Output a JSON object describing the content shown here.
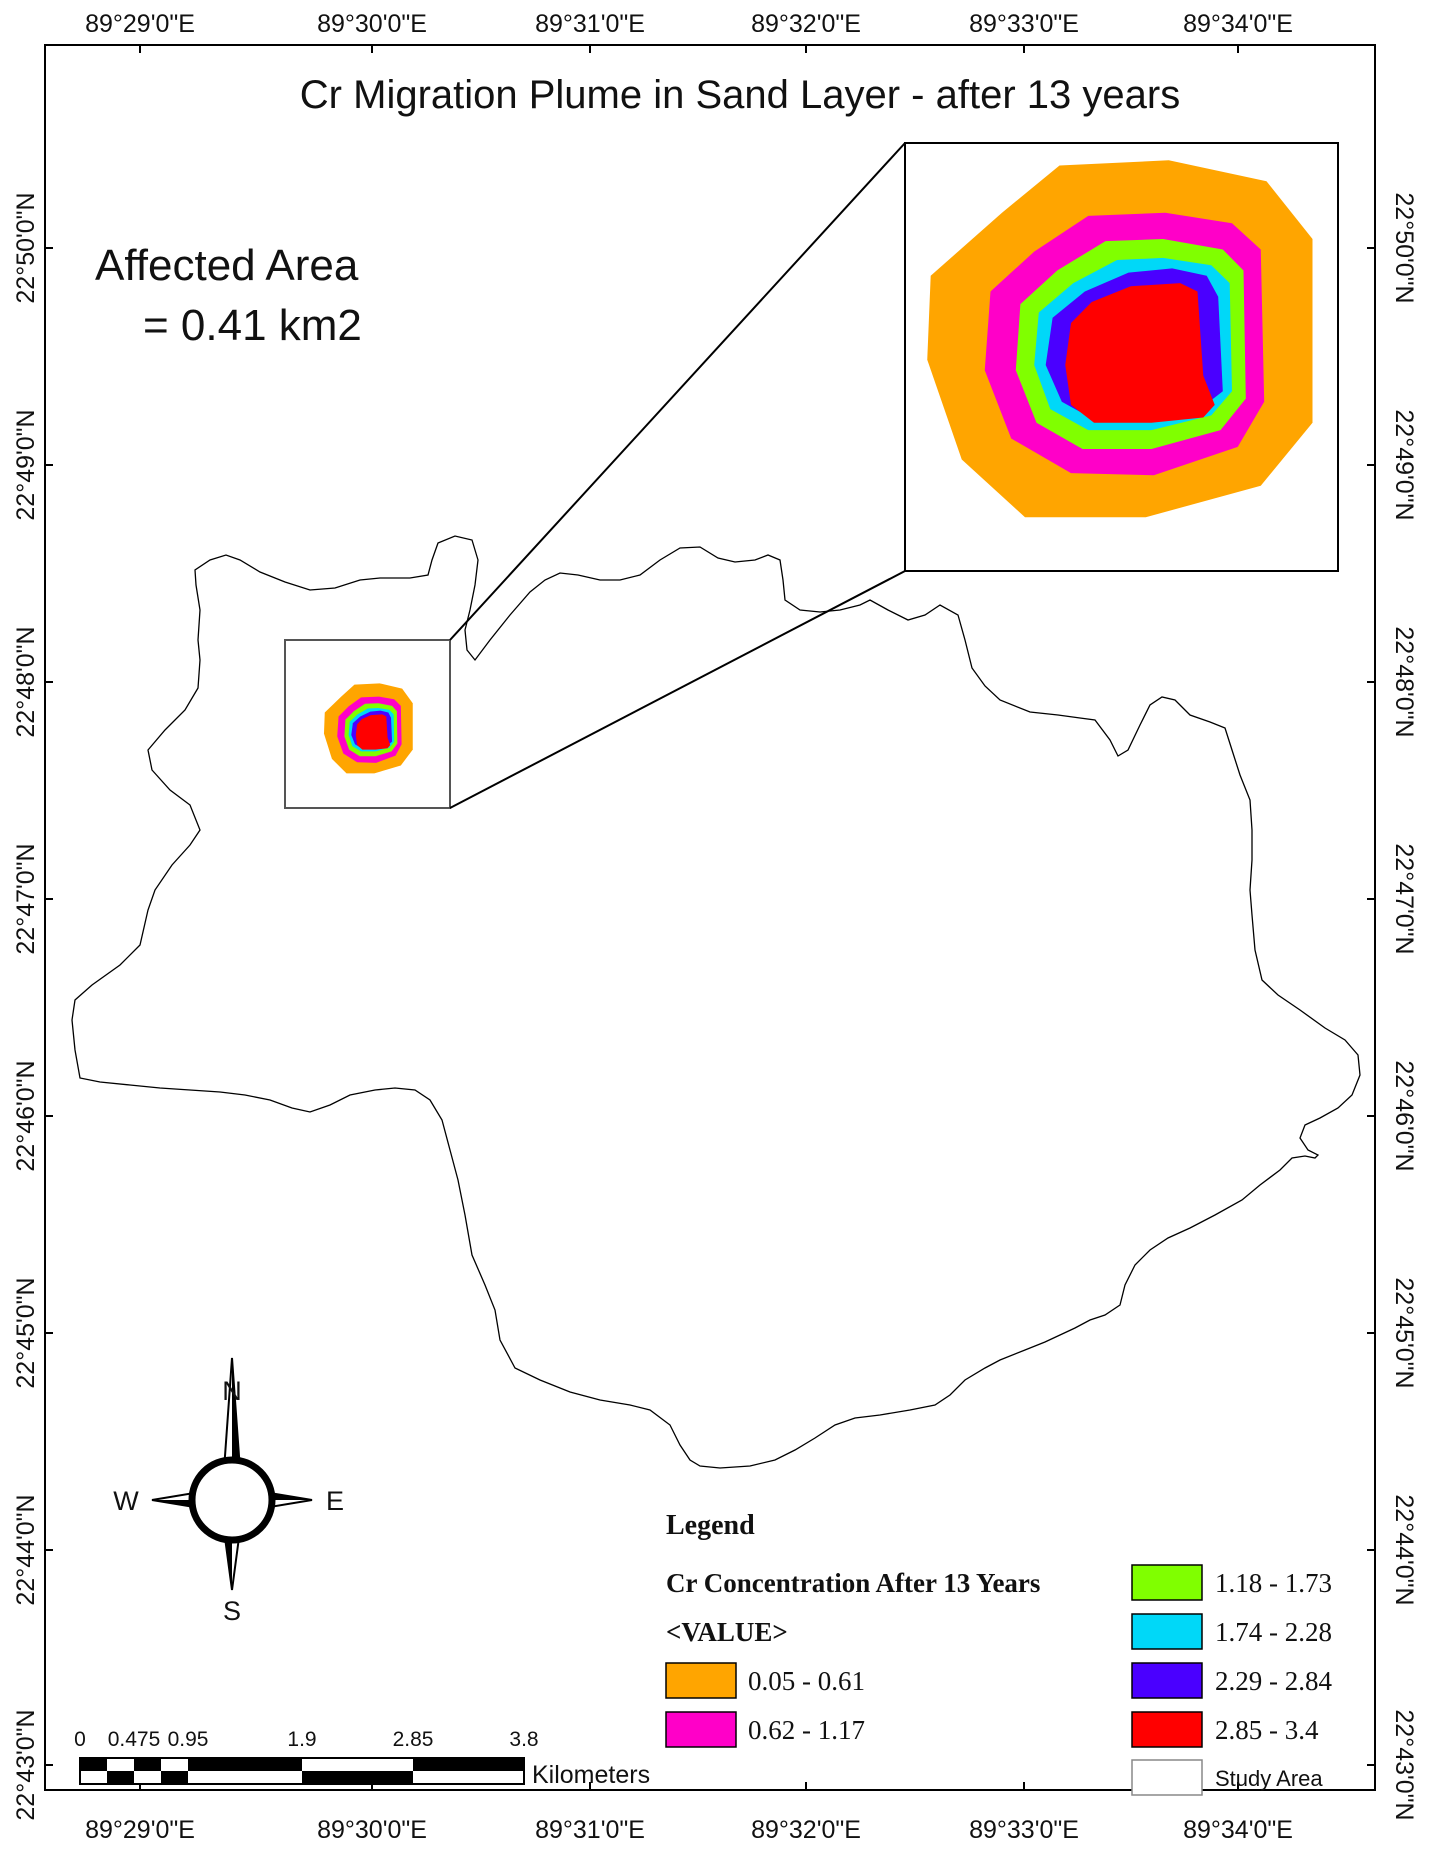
{
  "title": "Cr Migration Plume in Sand Layer - after 13 years",
  "affected_area": {
    "line1": "Affected Area",
    "line2": "= 0.41 km2"
  },
  "graticule": {
    "longitudes": [
      "89°29'0\"E",
      "89°30'0\"E",
      "89°31'0\"E",
      "89°32'0\"E",
      "89°33'0\"E",
      "89°34'0\"E"
    ],
    "latitudes": [
      "22°50'0\"N",
      "22°49'0\"N",
      "22°48'0\"N",
      "22°47'0\"N",
      "22°46'0\"N",
      "22°45'0\"N",
      "22°44'0\"N",
      "22°43'0\"N"
    ]
  },
  "north_arrow": {
    "n": "N",
    "s": "S",
    "e": "E",
    "w": "W"
  },
  "scale_bar": {
    "ticks": [
      "0",
      "0.475",
      "0.95",
      "1.9",
      "2.85",
      "3.8"
    ],
    "unit": "Kilometers"
  },
  "legend": {
    "title": "Legend",
    "layer": "Cr Concentration After 13 Years",
    "field": "<VALUE>",
    "classes": [
      {
        "label": "0.05 - 0.61",
        "color": "#FFA500"
      },
      {
        "label": "0.62 - 1.17",
        "color": "#FF00C8"
      },
      {
        "label": "1.18 - 1.73",
        "color": "#80FF00"
      },
      {
        "label": "1.74 - 2.28",
        "color": "#00D8F8"
      },
      {
        "label": "2.29 - 2.84",
        "color": "#4A00FF"
      },
      {
        "label": "2.85 - 3.4",
        "color": "#FF0000"
      }
    ],
    "study_area": {
      "label": "Study Area",
      "color": "#FFFFFF"
    }
  }
}
